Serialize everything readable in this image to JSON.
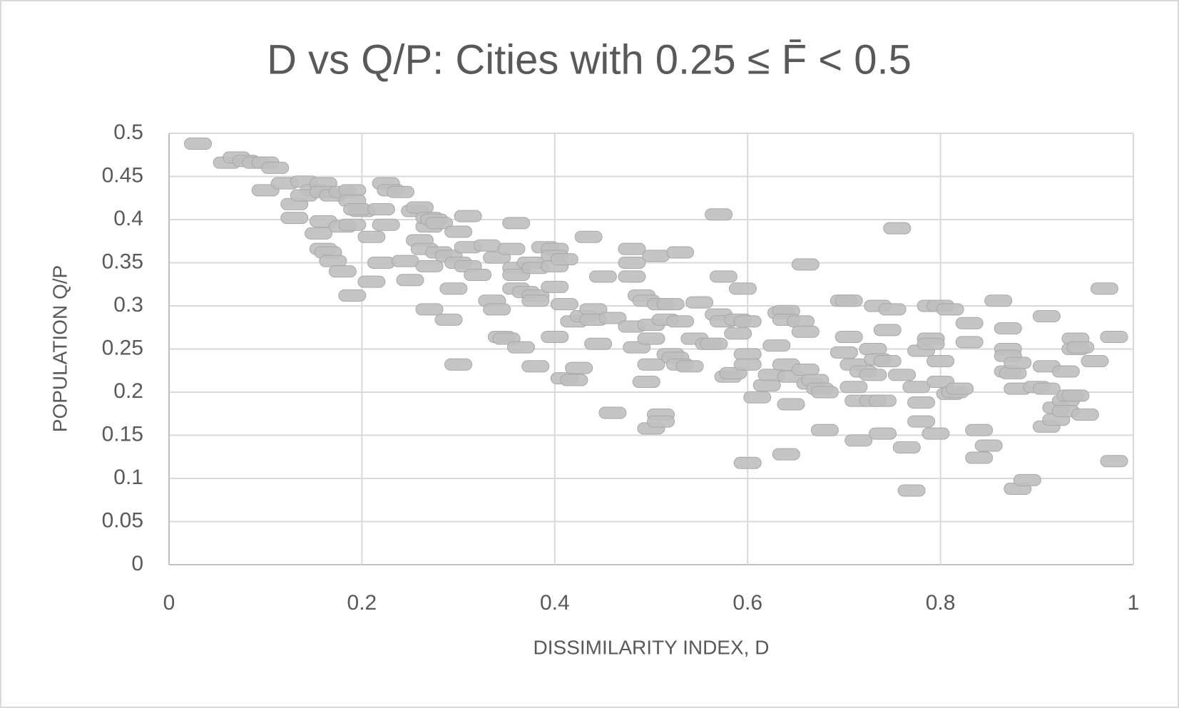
{
  "chart_data": {
    "type": "scatter",
    "title": "D  vs Q/P: Cities with 0.25 ≤  F̄ < 0.5",
    "xlabel": "DISSIMILARITY INDEX, D",
    "ylabel": "POPULATION Q/P",
    "color": "#bfbfbf",
    "grid": true,
    "xlim": [
      0,
      1
    ],
    "xticks": [
      0,
      0.2,
      0.4,
      0.6,
      0.8,
      1
    ],
    "ylim": [
      0,
      0.5
    ],
    "yticks": [
      0,
      0.05,
      0.1,
      0.15,
      0.2,
      0.25,
      0.3,
      0.35,
      0.4,
      0.45,
      0.5
    ],
    "x": [
      0.03,
      0.06,
      0.07,
      0.08,
      0.09,
      0.1,
      0.11,
      0.1,
      0.12,
      0.13,
      0.13,
      0.14,
      0.15,
      0.14,
      0.16,
      0.16,
      0.17,
      0.18,
      0.19,
      0.16,
      0.155,
      0.16,
      0.165,
      0.17,
      0.18,
      0.18,
      0.19,
      0.19,
      0.2,
      0.195,
      0.21,
      0.19,
      0.21,
      0.22,
      0.225,
      0.23,
      0.22,
      0.225,
      0.24,
      0.245,
      0.25,
      0.255,
      0.26,
      0.26,
      0.265,
      0.27,
      0.27,
      0.275,
      0.28,
      0.27,
      0.28,
      0.29,
      0.27,
      0.29,
      0.295,
      0.3,
      0.3,
      0.31,
      0.31,
      0.3,
      0.31,
      0.32,
      0.33,
      0.34,
      0.335,
      0.34,
      0.345,
      0.35,
      0.355,
      0.36,
      0.36,
      0.36,
      0.36,
      0.37,
      0.365,
      0.38,
      0.38,
      0.38,
      0.375,
      0.38,
      0.39,
      0.4,
      0.4,
      0.4,
      0.41,
      0.4,
      0.41,
      0.4,
      0.41,
      0.42,
      0.425,
      0.42,
      0.43,
      0.435,
      0.44,
      0.44,
      0.445,
      0.45,
      0.46,
      0.46,
      0.48,
      0.48,
      0.48,
      0.48,
      0.485,
      0.49,
      0.495,
      0.5,
      0.495,
      0.5,
      0.5,
      0.505,
      0.51,
      0.51,
      0.5,
      0.51,
      0.515,
      0.52,
      0.525,
      0.52,
      0.53,
      0.53,
      0.53,
      0.54,
      0.545,
      0.55,
      0.56,
      0.565,
      0.57,
      0.575,
      0.57,
      0.575,
      0.58,
      0.585,
      0.59,
      0.59,
      0.595,
      0.6,
      0.6,
      0.6,
      0.61,
      0.6,
      0.62,
      0.625,
      0.63,
      0.635,
      0.64,
      0.64,
      0.64,
      0.645,
      0.645,
      0.64,
      0.655,
      0.66,
      0.66,
      0.66,
      0.665,
      0.67,
      0.675,
      0.68,
      0.68,
      0.7,
      0.705,
      0.7,
      0.705,
      0.71,
      0.71,
      0.715,
      0.72,
      0.715,
      0.73,
      0.735,
      0.73,
      0.73,
      0.735,
      0.74,
      0.745,
      0.75,
      0.745,
      0.74,
      0.755,
      0.76,
      0.765,
      0.77,
      0.775,
      0.78,
      0.78,
      0.78,
      0.79,
      0.79,
      0.79,
      0.8,
      0.795,
      0.81,
      0.8,
      0.8,
      0.81,
      0.815,
      0.82,
      0.83,
      0.83,
      0.84,
      0.84,
      0.85,
      0.86,
      0.87,
      0.87,
      0.87,
      0.87,
      0.875,
      0.88,
      0.88,
      0.88,
      0.89,
      0.9,
      0.91,
      0.91,
      0.91,
      0.91,
      0.92,
      0.92,
      0.93,
      0.93,
      0.935,
      0.94,
      0.93,
      0.94,
      0.94,
      0.945,
      0.95,
      0.96,
      0.97,
      0.98,
      0.98
    ],
    "values": [
      0.488,
      0.466,
      0.472,
      0.468,
      0.466,
      0.466,
      0.46,
      0.434,
      0.442,
      0.418,
      0.402,
      0.444,
      0.434,
      0.428,
      0.442,
      0.432,
      0.428,
      0.432,
      0.434,
      0.398,
      0.384,
      0.366,
      0.362,
      0.352,
      0.34,
      0.392,
      0.394,
      0.422,
      0.41,
      0.412,
      0.38,
      0.312,
      0.328,
      0.35,
      0.442,
      0.434,
      0.412,
      0.394,
      0.432,
      0.352,
      0.33,
      0.41,
      0.414,
      0.376,
      0.366,
      0.392,
      0.402,
      0.4,
      0.396,
      0.346,
      0.362,
      0.358,
      0.296,
      0.284,
      0.32,
      0.232,
      0.386,
      0.404,
      0.368,
      0.35,
      0.346,
      0.336,
      0.37,
      0.356,
      0.306,
      0.296,
      0.264,
      0.262,
      0.366,
      0.396,
      0.344,
      0.336,
      0.32,
      0.316,
      0.252,
      0.23,
      0.312,
      0.306,
      0.35,
      0.344,
      0.368,
      0.366,
      0.358,
      0.346,
      0.354,
      0.322,
      0.302,
      0.264,
      0.216,
      0.214,
      0.228,
      0.282,
      0.288,
      0.38,
      0.296,
      0.284,
      0.256,
      0.334,
      0.286,
      0.176,
      0.366,
      0.35,
      0.334,
      0.276,
      0.252,
      0.312,
      0.306,
      0.232,
      0.212,
      0.278,
      0.262,
      0.358,
      0.302,
      0.174,
      0.158,
      0.166,
      0.284,
      0.244,
      0.24,
      0.302,
      0.362,
      0.282,
      0.232,
      0.23,
      0.262,
      0.304,
      0.256,
      0.256,
      0.29,
      0.282,
      0.406,
      0.334,
      0.218,
      0.222,
      0.284,
      0.268,
      0.32,
      0.282,
      0.244,
      0.232,
      0.194,
      0.118,
      0.208,
      0.22,
      0.254,
      0.292,
      0.294,
      0.284,
      0.232,
      0.218,
      0.186,
      0.128,
      0.282,
      0.27,
      0.348,
      0.226,
      0.21,
      0.214,
      0.204,
      0.2,
      0.156,
      0.306,
      0.306,
      0.246,
      0.264,
      0.232,
      0.206,
      0.19,
      0.224,
      0.144,
      0.25,
      0.238,
      0.22,
      0.19,
      0.3,
      0.152,
      0.272,
      0.296,
      0.236,
      0.19,
      0.39,
      0.22,
      0.136,
      0.086,
      0.206,
      0.188,
      0.166,
      0.248,
      0.3,
      0.262,
      0.256,
      0.3,
      0.152,
      0.296,
      0.236,
      0.212,
      0.198,
      0.2,
      0.204,
      0.28,
      0.258,
      0.156,
      0.124,
      0.138,
      0.306,
      0.274,
      0.25,
      0.242,
      0.224,
      0.222,
      0.204,
      0.088,
      0.234,
      0.098,
      0.206,
      0.204,
      0.288,
      0.23,
      0.16,
      0.182,
      0.168,
      0.19,
      0.178,
      0.196,
      0.196,
      0.224,
      0.262,
      0.25,
      0.252,
      0.174,
      0.236,
      0.32,
      0.264,
      0.12
    ]
  }
}
